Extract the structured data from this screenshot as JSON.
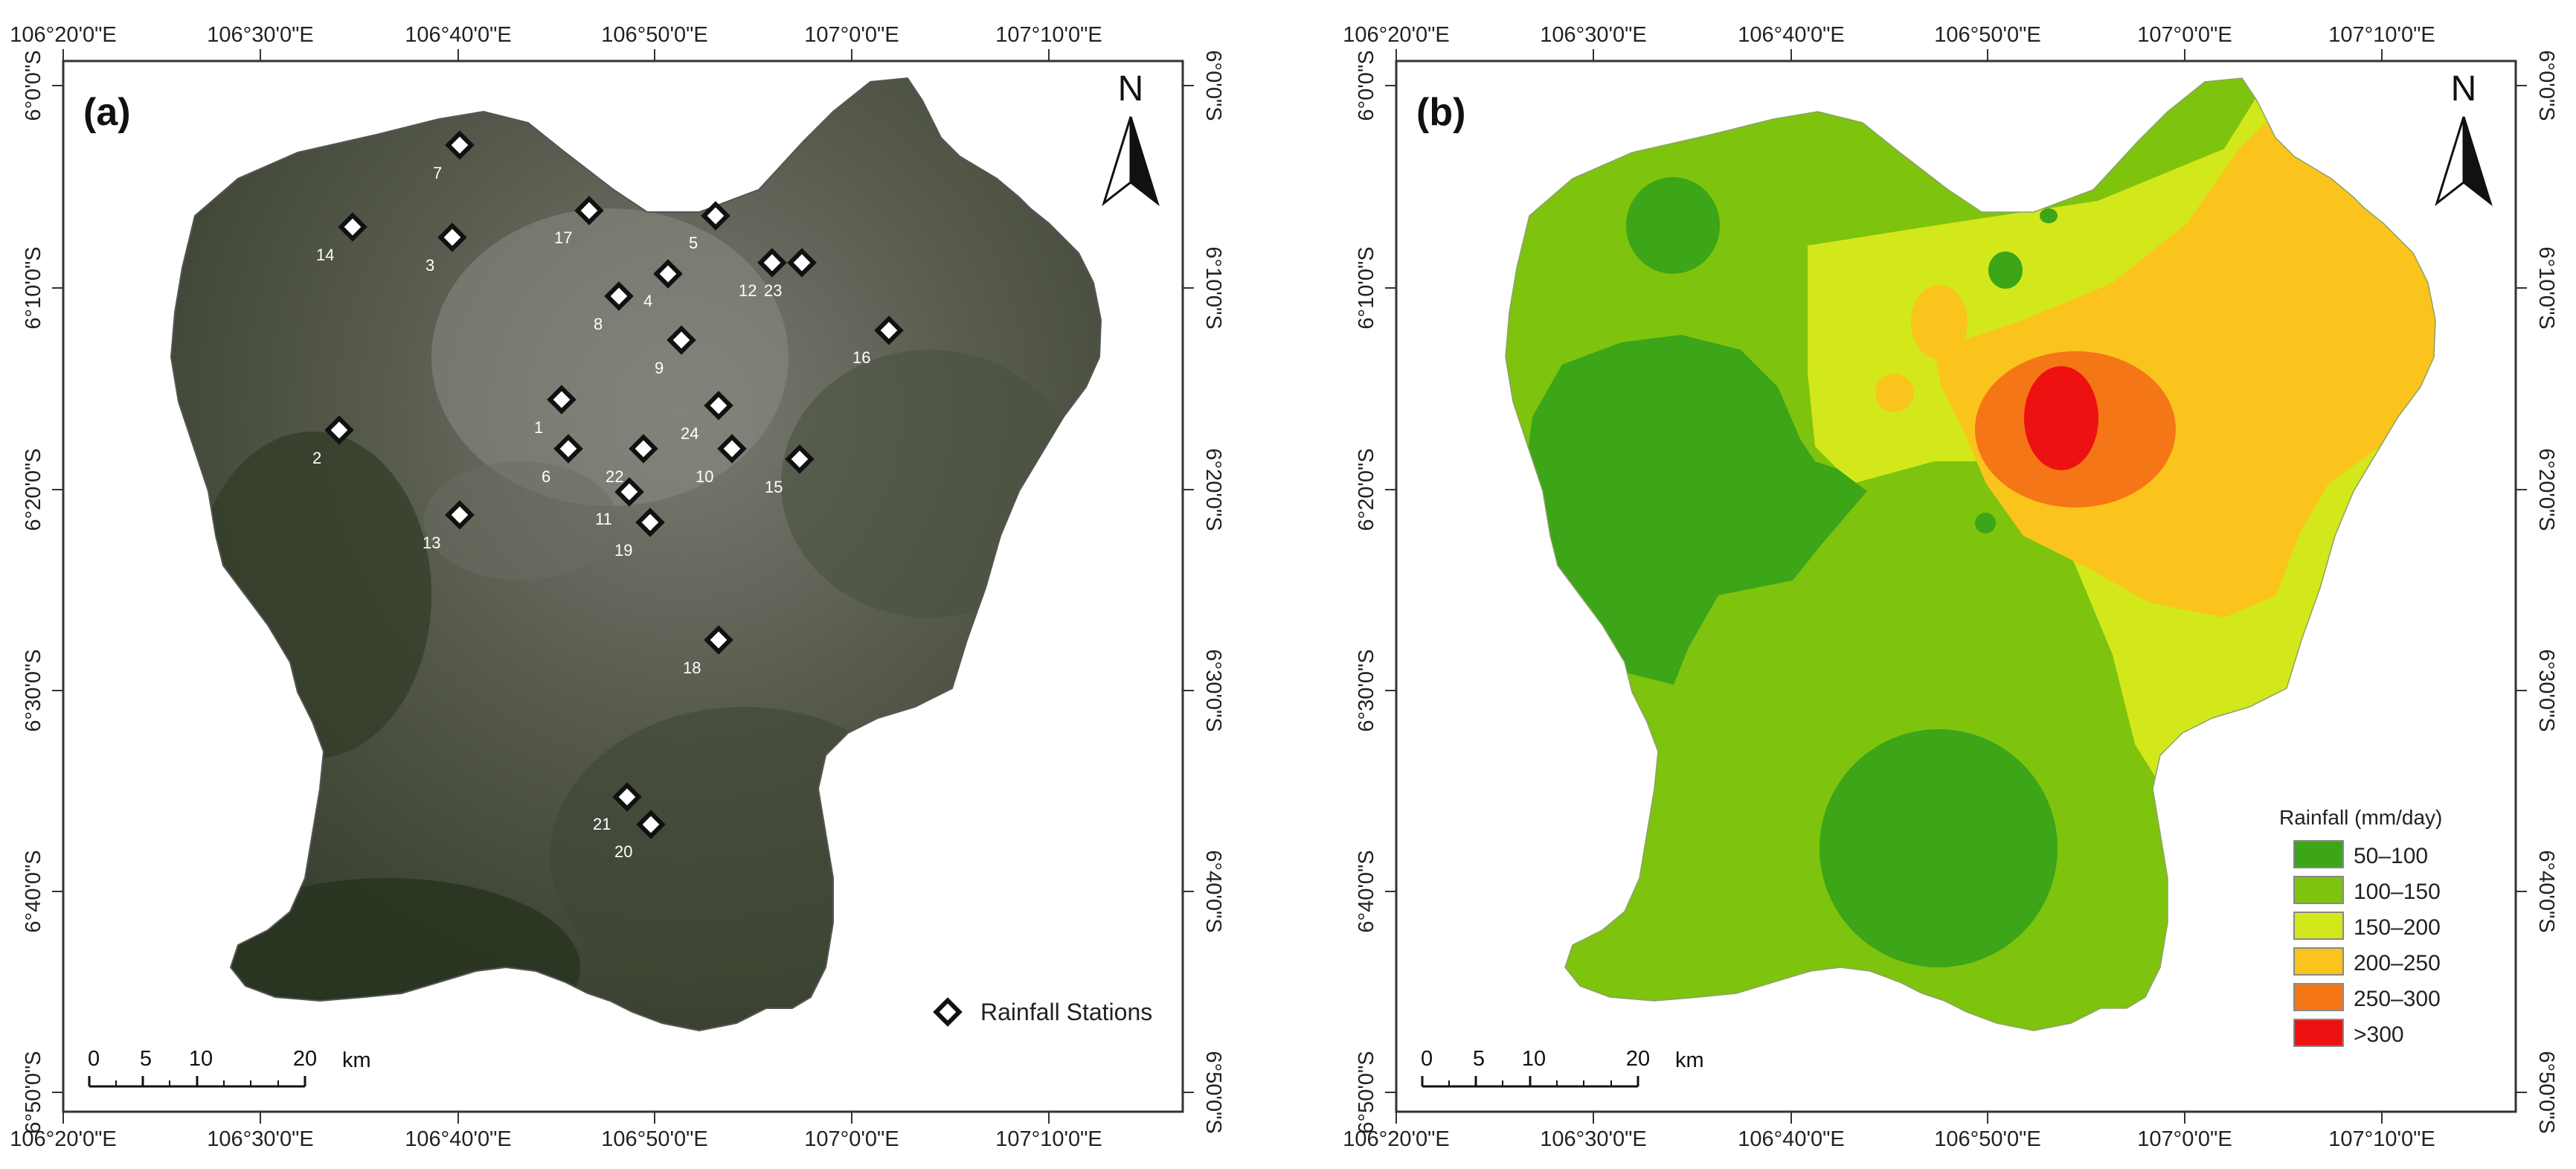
{
  "longitude_labels": [
    "106°20'0\"E",
    "106°30'0\"E",
    "106°40'0\"E",
    "106°50'0\"E",
    "107°0'0\"E",
    "107°10'0\"E"
  ],
  "latitude_labels": [
    "6°0'0\"S",
    "6°10'0\"S",
    "6°20'0\"S",
    "6°30'0\"S",
    "6°40'0\"S",
    "6°50'0\"S"
  ],
  "panel_a": {
    "label": "(a)",
    "north": "N",
    "legend_label": "Rainfall Stations",
    "stations": [
      "1",
      "2",
      "3",
      "4",
      "5",
      "6",
      "7",
      "8",
      "9",
      "10",
      "11",
      "12",
      "13",
      "14",
      "15",
      "16",
      "17",
      "18",
      "19",
      "20",
      "21",
      "22",
      "23",
      "24"
    ],
    "scale": {
      "ticks": [
        "0",
        "5",
        "10",
        "20"
      ],
      "unit": "km"
    }
  },
  "panel_b": {
    "label": "(b)",
    "north": "N",
    "legend_title": "Rainfall (mm/day)",
    "legend": [
      {
        "label": "50–100",
        "color": "#3ca518"
      },
      {
        "label": "100–150",
        "color": "#7ec30e"
      },
      {
        "label": "150–200",
        "color": "#d3e81a"
      },
      {
        "label": "200–250",
        "color": "#fac41d"
      },
      {
        "label": "250–300",
        "color": "#f57616"
      },
      {
        "label": ">300",
        "color": "#ee1111"
      }
    ],
    "scale": {
      "ticks": [
        "0",
        "5",
        "10",
        "20"
      ],
      "unit": "km"
    }
  }
}
